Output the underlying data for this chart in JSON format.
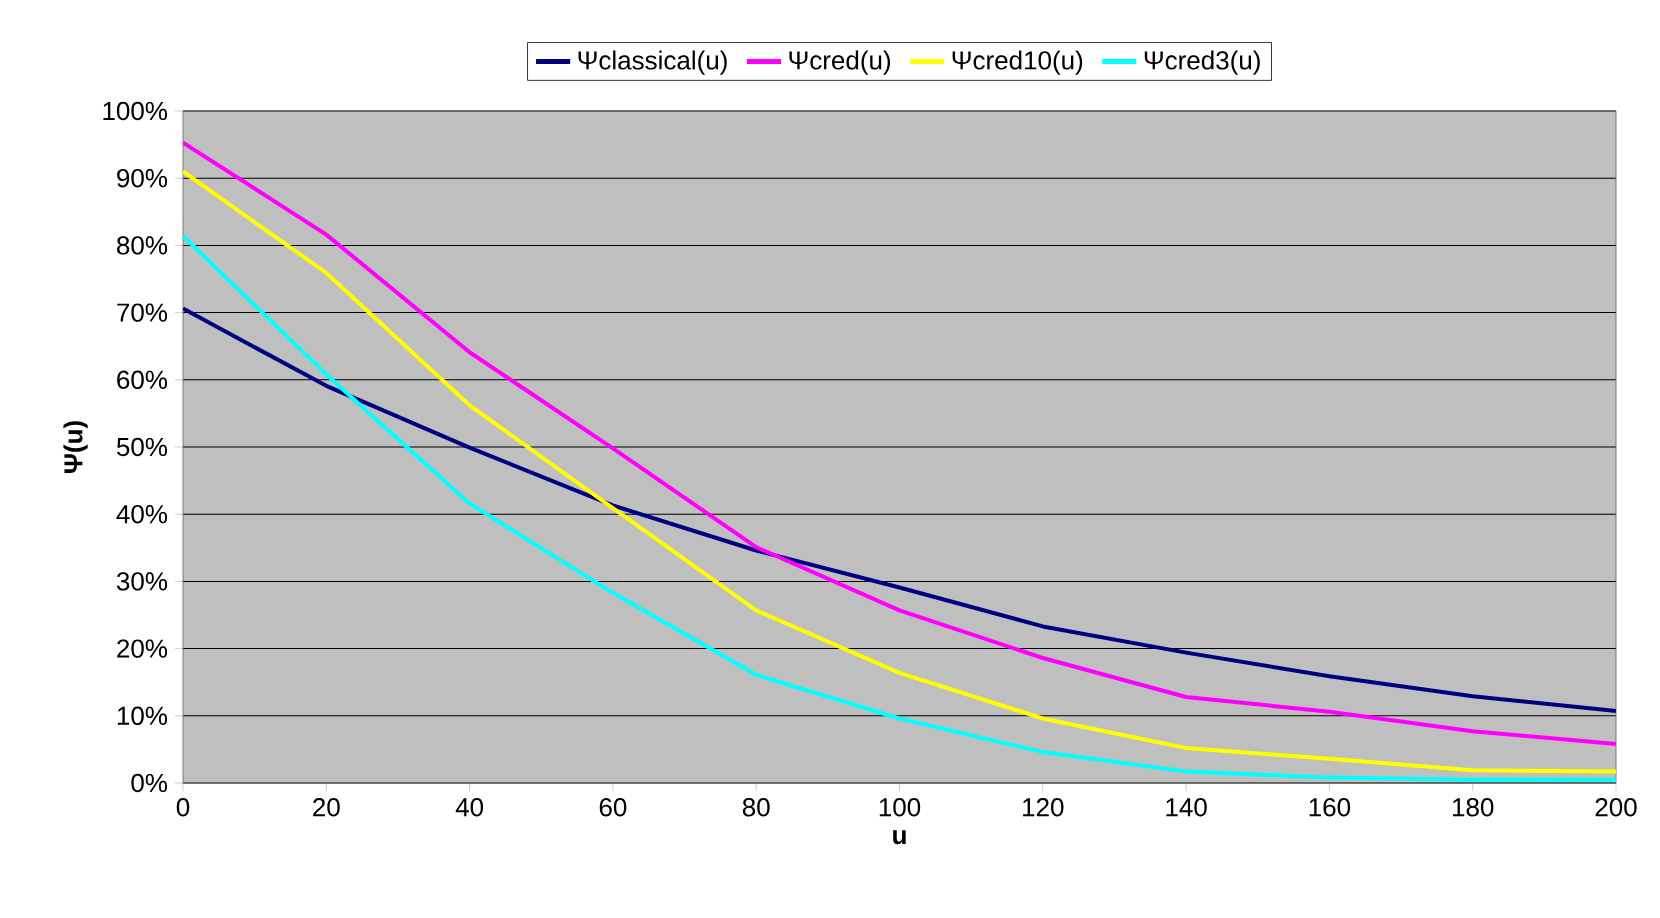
{
  "chart_data": {
    "type": "line",
    "xlabel": "u",
    "ylabel": "Ψ(u)",
    "x": [
      0,
      20,
      40,
      60,
      80,
      100,
      120,
      140,
      160,
      180,
      200
    ],
    "series": [
      {
        "name": "Ψclassical(u)",
        "color": "#000080",
        "values": [
          70.6,
          59.1,
          49.9,
          41.3,
          34.6,
          29.1,
          23.3,
          19.4,
          15.9,
          12.9,
          10.7
        ]
      },
      {
        "name": "Ψcred(u)",
        "color": "#ff00ff",
        "values": [
          95.3,
          81.6,
          64.1,
          49.8,
          35.1,
          25.7,
          18.6,
          12.8,
          10.6,
          7.7,
          5.8
        ]
      },
      {
        "name": "Ψcred10(u)",
        "color": "#ffff00",
        "values": [
          91.0,
          75.9,
          56.2,
          40.9,
          25.7,
          16.4,
          9.6,
          5.2,
          3.6,
          1.9,
          1.7
        ]
      },
      {
        "name": "Ψcred3(u)",
        "color": "#00ffff",
        "values": [
          81.4,
          60.8,
          41.6,
          28.3,
          16.1,
          9.6,
          4.6,
          1.7,
          0.8,
          0.5,
          0.5
        ]
      }
    ],
    "xlim": [
      0,
      200
    ],
    "xticks": [
      0,
      20,
      40,
      60,
      80,
      100,
      120,
      140,
      160,
      180,
      200
    ],
    "ylim": [
      0,
      100
    ],
    "yticks": [
      {
        "value": 0,
        "label": "0%"
      },
      {
        "value": 10,
        "label": "10%"
      },
      {
        "value": 20,
        "label": "20%"
      },
      {
        "value": 30,
        "label": "30%"
      },
      {
        "value": 40,
        "label": "40%"
      },
      {
        "value": 50,
        "label": "50%"
      },
      {
        "value": 60,
        "label": "60%"
      },
      {
        "value": 70,
        "label": "70%"
      },
      {
        "value": 80,
        "label": "80%"
      },
      {
        "value": 90,
        "label": "90%"
      },
      {
        "value": 100,
        "label": "100%"
      }
    ],
    "grid": "y",
    "legend": "top",
    "line_style": "solid"
  }
}
